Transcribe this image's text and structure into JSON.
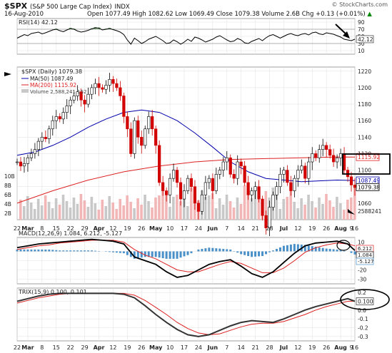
{
  "header": {
    "symbol": "$SPX",
    "name": "(S&P 500 Large Cap Index)",
    "exchange": "INDX",
    "date": "16-Aug-2010",
    "ohlc": "Open 1077.49  High 1082.62  Low 1069.49  Close 1079.38  Volume 2.6B  Chg +0.13 (+0.01%)",
    "arrow": "▲",
    "copyright": "© StockCharts.com"
  },
  "chart_data": [
    {
      "type": "line",
      "panel": "RSI",
      "legend": "RSI(14) 42.12",
      "ylim": [
        0,
        100
      ],
      "yticks": [
        10,
        30,
        50,
        70,
        90
      ],
      "reference_lines": [
        30,
        70
      ],
      "last_value_label": "42.12",
      "x": [
        0,
        5,
        10,
        15,
        20,
        25,
        30,
        35,
        40,
        45,
        50,
        55,
        60,
        65,
        70,
        75,
        80,
        85,
        90,
        95,
        100,
        105,
        110,
        115,
        120,
        125,
        130,
        135,
        140,
        145,
        150,
        155,
        160,
        165,
        170,
        175,
        180,
        185,
        190,
        195,
        200,
        205,
        210,
        215,
        220,
        225,
        230,
        235,
        240,
        245,
        250,
        255,
        260,
        265,
        270,
        275,
        280,
        285,
        290,
        295,
        300,
        305,
        310,
        315,
        320,
        325,
        330,
        335,
        340,
        345,
        350,
        355,
        360,
        365,
        370,
        375,
        380,
        385,
        390,
        395,
        400,
        405,
        410,
        415,
        420,
        425,
        430,
        435,
        440,
        445,
        450,
        455,
        460,
        465,
        470,
        475
      ],
      "values": [
        45,
        50,
        55,
        52,
        58,
        60,
        62,
        57,
        60,
        64,
        68,
        70,
        66,
        63,
        68,
        72,
        70,
        65,
        62,
        64,
        67,
        71,
        74,
        73,
        68,
        70,
        72,
        69,
        66,
        62,
        55,
        40,
        28,
        45,
        38,
        30,
        35,
        42,
        46,
        50,
        44,
        38,
        30,
        32,
        40,
        35,
        28,
        34,
        42,
        36,
        48,
        45,
        40,
        34,
        38,
        42,
        48,
        52,
        46,
        40,
        35,
        37,
        44,
        40,
        32,
        30,
        36,
        40,
        44,
        38,
        46,
        52,
        55,
        50,
        45,
        50,
        55,
        58,
        54,
        52,
        56,
        58,
        54,
        60,
        62,
        57,
        55,
        60,
        58,
        56,
        52,
        48,
        42,
        40,
        38,
        42
      ],
      "series_color": "#000000"
    },
    {
      "type": "line",
      "panel": "Price",
      "legend": "$SPX (Daily) 1079.38",
      "ylim": [
        1040,
        1225
      ],
      "yticks": [
        1060,
        1080,
        1100,
        1120,
        1140,
        1160,
        1180,
        1200,
        1220
      ],
      "price": {
        "x": [
          0,
          5,
          10,
          15,
          20,
          25,
          30,
          35,
          40,
          45,
          50,
          55,
          60,
          65,
          70,
          75,
          80,
          85,
          90,
          95,
          100,
          105,
          110,
          115,
          120,
          125,
          130,
          135,
          140,
          145,
          150,
          155,
          160,
          165,
          170,
          175,
          180,
          185,
          190,
          195,
          200,
          205,
          210,
          215,
          220,
          225,
          230,
          235,
          240,
          245,
          250,
          255,
          260,
          265,
          270,
          275,
          280,
          285,
          290,
          295,
          300,
          305,
          310,
          315,
          320,
          325,
          330,
          335,
          340,
          345,
          350,
          355,
          360,
          365,
          370,
          375,
          380,
          385,
          390,
          395,
          400,
          405,
          410,
          415,
          420,
          425,
          430,
          435,
          440,
          445,
          450,
          455,
          460,
          465,
          470,
          475
        ],
        "values": [
          1110,
          1105,
          1108,
          1115,
          1120,
          1125,
          1135,
          1140,
          1138,
          1150,
          1160,
          1165,
          1162,
          1170,
          1178,
          1185,
          1190,
          1195,
          1185,
          1180,
          1192,
          1200,
          1205,
          1200,
          1198,
          1203,
          1210,
          1205,
          1200,
          1190,
          1165,
          1150,
          1120,
          1160,
          1140,
          1130,
          1150,
          1165,
          1150,
          1130,
          1085,
          1075,
          1070,
          1090,
          1100,
          1085,
          1065,
          1075,
          1090,
          1080,
          1060,
          1050,
          1070,
          1085,
          1090,
          1075,
          1095,
          1100,
          1110,
          1115,
          1095,
          1090,
          1110,
          1105,
          1085,
          1070,
          1075,
          1080,
          1065,
          1045,
          1030,
          1055,
          1070,
          1080,
          1095,
          1100,
          1085,
          1075,
          1090,
          1100,
          1105,
          1090,
          1110,
          1120,
          1115,
          1125,
          1130,
          1125,
          1118,
          1110,
          1115,
          1120,
          1100,
          1092,
          1082,
          1079
        ]
      },
      "ma50": {
        "label": "MA(50) 1087.49",
        "x": [
          0,
          25,
          50,
          75,
          100,
          125,
          150,
          175,
          200,
          225,
          250,
          275,
          300,
          325,
          350,
          375,
          400,
          425,
          450,
          475
        ],
        "values": [
          1118,
          1122,
          1130,
          1140,
          1152,
          1162,
          1170,
          1173,
          1170,
          1160,
          1145,
          1128,
          1110,
          1098,
          1090,
          1088,
          1086,
          1087,
          1088,
          1087.49
        ],
        "color": "#0000aa"
      },
      "ma200": {
        "label": "MA(200) 1115.92",
        "x": [
          0,
          50,
          100,
          150,
          200,
          250,
          300,
          350,
          400,
          450,
          475
        ],
        "values": [
          1060,
          1075,
          1088,
          1098,
          1105,
          1110,
          1113,
          1114,
          1115,
          1116,
          1115.92
        ],
        "color": "#dd2222"
      },
      "volume_label": "Volume 2,588,241,152",
      "volume_ticks": [
        "2B",
        "4B",
        "6B",
        "8B",
        "10B"
      ],
      "volume_last_label": "2588241",
      "price_last_label": "1079.38",
      "ma50_last_label": "1087.49",
      "ma200_last_label": "1115.92"
    },
    {
      "type": "line",
      "panel": "MACD",
      "legend": "MACD(12,26,9) 1.084, 6.212, -5.127",
      "ylim": [
        -35,
        15
      ],
      "yticks": [
        10,
        0,
        -10,
        -20,
        -30
      ],
      "last_labels": [
        "6.212",
        "1.084",
        "-5.127"
      ],
      "x": [
        0,
        15,
        30,
        45,
        60,
        75,
        90,
        105,
        120,
        135,
        150,
        165,
        180,
        195,
        210,
        225,
        240,
        255,
        270,
        285,
        300,
        315,
        330,
        345,
        360,
        375,
        390,
        405,
        420,
        435,
        450,
        465,
        475
      ],
      "macd": [
        4,
        6,
        8,
        9,
        10,
        11,
        12,
        13,
        12,
        11,
        8,
        -6,
        -10,
        -14,
        -22,
        -28,
        -26,
        -20,
        -14,
        -11,
        -9,
        -16,
        -24,
        -28,
        -22,
        -12,
        -2,
        6,
        9,
        10,
        11,
        8,
        1
      ],
      "signal": [
        2,
        4,
        6,
        7,
        9,
        10,
        11,
        12,
        12,
        12,
        10,
        2,
        -4,
        -8,
        -14,
        -20,
        -22,
        -22,
        -18,
        -14,
        -11,
        -13,
        -18,
        -23,
        -23,
        -18,
        -10,
        -1,
        4,
        7,
        9,
        8,
        6
      ]
    },
    {
      "type": "line",
      "panel": "TRIX",
      "legend": "TRIX(15,9) 0.100, 0.101",
      "ylim": [
        -0.35,
        0.25
      ],
      "yticks": [
        0.2,
        0.1,
        0.0,
        -0.1,
        -0.2,
        -0.3
      ],
      "last_label": "0.100",
      "x": [
        0,
        15,
        30,
        45,
        60,
        75,
        90,
        105,
        120,
        135,
        150,
        165,
        180,
        195,
        210,
        225,
        240,
        255,
        270,
        285,
        300,
        315,
        330,
        345,
        360,
        375,
        390,
        405,
        420,
        435,
        450,
        465,
        475
      ],
      "trix": [
        0.1,
        0.13,
        0.16,
        0.18,
        0.19,
        0.19,
        0.19,
        0.19,
        0.19,
        0.19,
        0.18,
        0.14,
        0.05,
        -0.05,
        -0.14,
        -0.22,
        -0.28,
        -0.3,
        -0.28,
        -0.23,
        -0.18,
        -0.14,
        -0.12,
        -0.13,
        -0.14,
        -0.1,
        -0.05,
        0.0,
        0.04,
        0.07,
        0.1,
        0.13,
        0.1
      ],
      "signal": [
        0.08,
        0.11,
        0.14,
        0.16,
        0.18,
        0.19,
        0.19,
        0.19,
        0.19,
        0.19,
        0.19,
        0.17,
        0.11,
        0.03,
        -0.05,
        -0.14,
        -0.21,
        -0.26,
        -0.28,
        -0.27,
        -0.23,
        -0.19,
        -0.16,
        -0.15,
        -0.15,
        -0.13,
        -0.09,
        -0.05,
        0.0,
        0.04,
        0.07,
        0.1,
        0.101
      ]
    }
  ],
  "x_axis": {
    "labels_top": [
      "22",
      "Mar",
      "8",
      "15",
      "22",
      "29",
      "Apr",
      "12",
      "19",
      "26",
      "May",
      "10",
      "17",
      "24",
      "Jun",
      "7",
      "14",
      "21",
      "28",
      "Jul",
      "12",
      "19",
      "26",
      "Aug",
      "9",
      "16"
    ],
    "labels_bottom": [
      "22",
      "Mar",
      "8",
      "15",
      "22",
      "29",
      "Apr",
      "12",
      "19",
      "26",
      "May",
      "10",
      "17",
      "24",
      "Jun",
      "7",
      "14",
      "21",
      "28",
      "Jul",
      "12",
      "19",
      "26",
      "Aug",
      "9",
      "16"
    ],
    "positions": [
      0,
      15,
      35,
      55,
      75,
      95,
      115,
      135,
      155,
      175,
      195,
      215,
      235,
      255,
      275,
      295,
      315,
      335,
      355,
      375,
      395,
      415,
      435,
      455,
      470,
      485
    ]
  },
  "annotations": {
    "arrow_color": "#000000",
    "circle_color": "#000000"
  }
}
